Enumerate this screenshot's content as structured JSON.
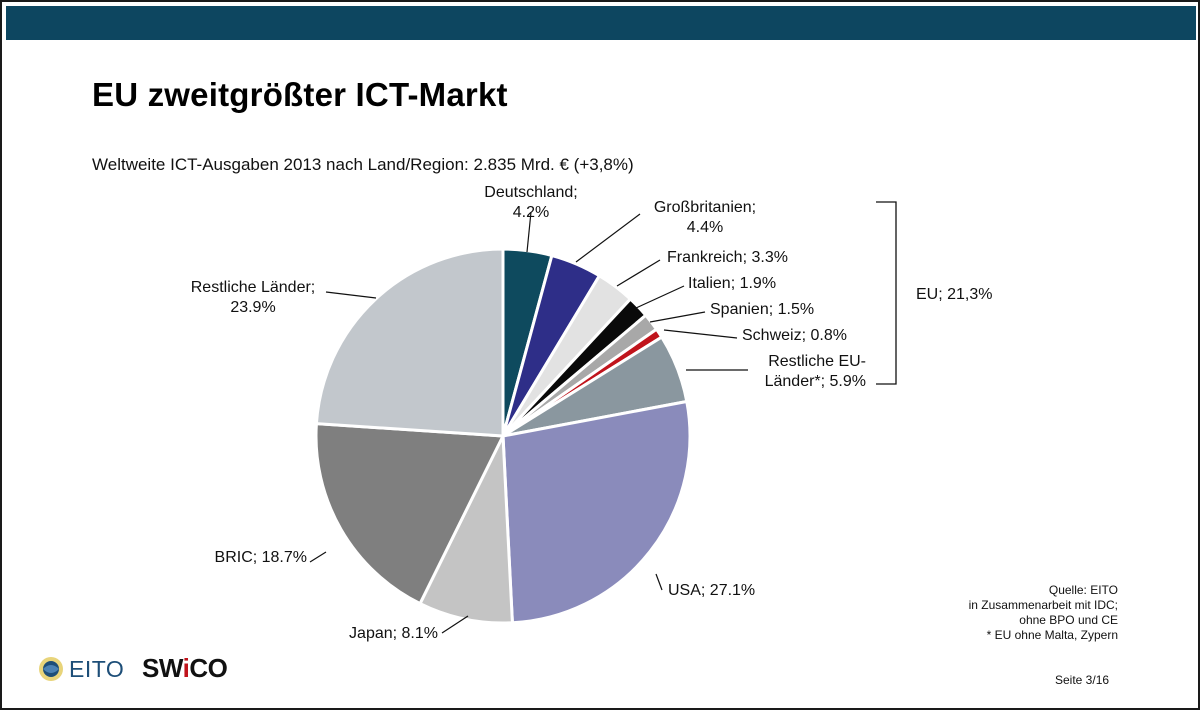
{
  "header": {
    "title": "EU zweitgrößter ICT-Markt",
    "subtitle": "Weltweite ICT-Ausgaben 2013 nach Land/Region: 2.835 Mrd. € (+3,8%)"
  },
  "chart_data": {
    "type": "pie",
    "title": "",
    "slices": [
      {
        "name": "Deutschland",
        "value": 4.2,
        "label_lines": [
          "Deutschland;",
          "4.2%"
        ],
        "color": "#0e4a5e"
      },
      {
        "name": "Großbritanien",
        "value": 4.4,
        "label_lines": [
          "Großbritanien;",
          "4.4%"
        ],
        "color": "#2e2e88"
      },
      {
        "name": "Frankreich",
        "value": 3.3,
        "label_lines": [
          "Frankreich; 3.3%"
        ],
        "color": "#e2e2e2"
      },
      {
        "name": "Italien",
        "value": 1.9,
        "label_lines": [
          "Italien; 1.9%"
        ],
        "color": "#0a0a0a"
      },
      {
        "name": "Spanien",
        "value": 1.5,
        "label_lines": [
          "Spanien; 1.5%"
        ],
        "color": "#a8a8a8"
      },
      {
        "name": "Schweiz",
        "value": 0.8,
        "label_lines": [
          "Schweiz; 0.8%"
        ],
        "color": "#c0141c",
        "label_color": "#b01a1a"
      },
      {
        "name": "Restliche EU-Länder*",
        "value": 5.9,
        "label_lines": [
          "Restliche EU-",
          "Länder*; 5.9%"
        ],
        "color": "#8a979f"
      },
      {
        "name": "USA",
        "value": 27.1,
        "label_lines": [
          "USA; 27.1%"
        ],
        "color": "#8a8bbb"
      },
      {
        "name": "Japan",
        "value": 8.1,
        "label_lines": [
          "Japan; 8.1%"
        ],
        "color": "#c4c4c4"
      },
      {
        "name": "BRIC",
        "value": 18.7,
        "label_lines": [
          "BRIC; 18.7%"
        ],
        "color": "#7f7f7f"
      },
      {
        "name": "Restliche Länder",
        "value": 23.9,
        "label_lines": [
          "Restliche Länder;",
          "23.9%"
        ],
        "color": "#c2c7cc"
      }
    ],
    "bracket_label": "EU; 21,3%"
  },
  "source": {
    "lines": [
      "Quelle: EITO",
      "in Zusammenarbeit mit IDC;",
      "ohne BPO und CE",
      "* EU ohne Malta, Zypern"
    ]
  },
  "footer": {
    "page": "Seite 3/16",
    "logo_eito": "EITO",
    "logo_swico_a": "SW",
    "logo_swico_b": "i",
    "logo_swico_c": "CO"
  }
}
